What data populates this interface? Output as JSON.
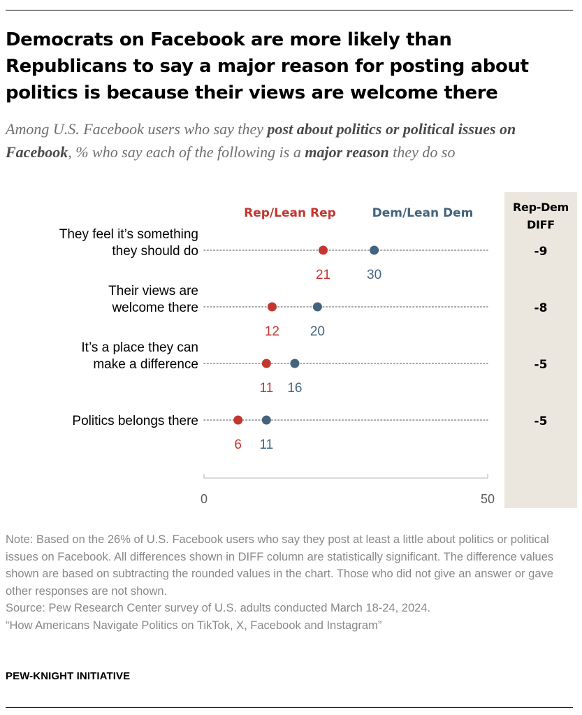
{
  "title": "Democrats on Facebook are more likely than Republicans to say a major reason for posting about politics is because their views are welcome there",
  "subtitle": {
    "t1": "Among U.S. Facebook users who say they ",
    "b1": "post about politics or political issues on Facebook",
    "t2": ", % who say each of the following is a ",
    "b2": "major reason",
    "t3": " they do so"
  },
  "diff_header": [
    "Rep-Dem",
    "DIFF"
  ],
  "chart_data": {
    "type": "dot",
    "x_range": [
      0,
      50
    ],
    "x_ticks": [
      "0",
      "50"
    ],
    "series": [
      {
        "name": "Rep/Lean Rep",
        "color": "#c2372f",
        "values": [
          21,
          12,
          11,
          6
        ]
      },
      {
        "name": "Dem/Lean Dem",
        "color": "#44647e",
        "values": [
          30,
          20,
          16,
          11
        ]
      }
    ],
    "categories": [
      {
        "lines": [
          "They feel it’s something",
          "they should do"
        ],
        "diff": "-9"
      },
      {
        "lines": [
          "Their views are",
          "welcome there"
        ],
        "diff": "-8"
      },
      {
        "lines": [
          "It’s a place they can",
          "make a difference"
        ],
        "diff": "-5"
      },
      {
        "lines": [
          "Politics belongs there"
        ],
        "diff": "-5"
      }
    ]
  },
  "notes": {
    "note": "Note: Based on the 26% of U.S. Facebook users who say they post at least a little about politics or political issues on Facebook. All differences shown in DIFF column are statistically significant. The difference values shown are based on subtracting the rounded values in the chart. Those who did not give an answer or gave other responses are not shown.",
    "source": "Source: Pew Research Center survey of U.S. adults conducted March 18-24, 2024.",
    "report": "“How Americans Navigate Politics on TikTok, X, Facebook and Instagram”"
  },
  "brand": "PEW-KNIGHT INITIATIVE"
}
